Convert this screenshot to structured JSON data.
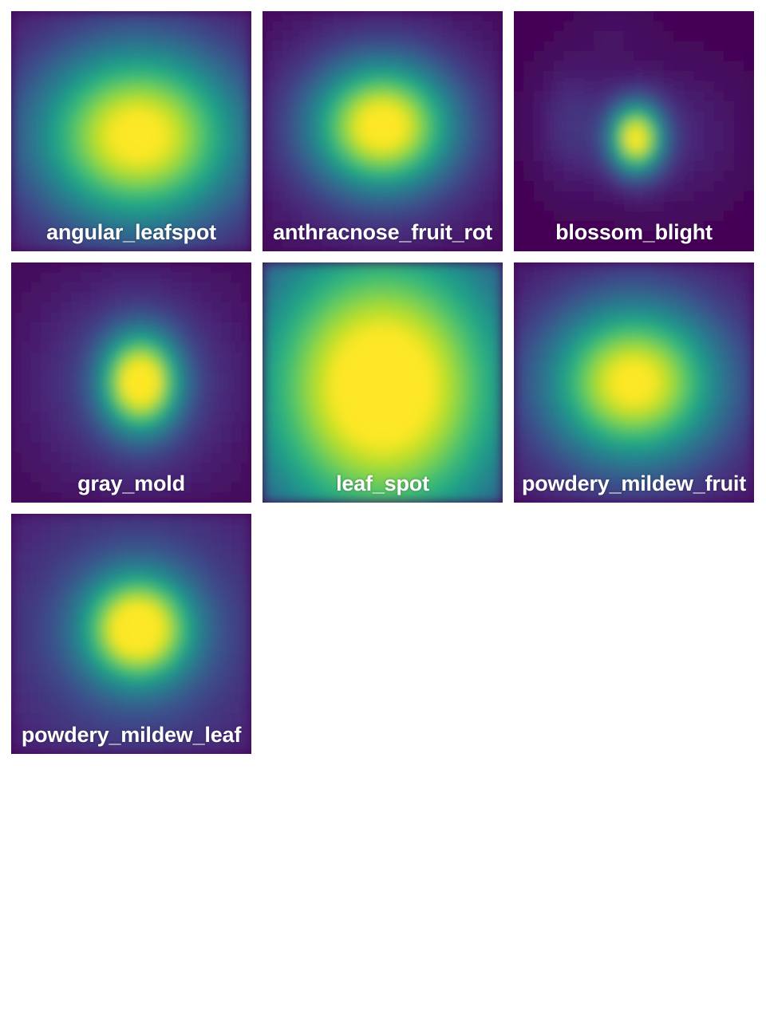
{
  "chart_data": {
    "type": "heatmap",
    "title": "",
    "colormap": "viridis",
    "colormap_stops": [
      "#440154",
      "#482878",
      "#3e4989",
      "#31688e",
      "#26828e",
      "#1f9e89",
      "#35b779",
      "#6ece58",
      "#b5de2b",
      "#fde725"
    ],
    "panels": [
      {
        "label": "angular_leafspot",
        "blobs": [
          {
            "cx": 0.53,
            "cy": 0.52,
            "sx": 0.3,
            "sy": 0.26,
            "amp": 1.0
          }
        ],
        "floor": 0.05
      },
      {
        "label": "anthracnose_fruit_rot",
        "blobs": [
          {
            "cx": 0.5,
            "cy": 0.48,
            "sx": 0.2,
            "sy": 0.18,
            "amp": 0.92
          },
          {
            "cx": 0.5,
            "cy": 0.5,
            "sx": 0.42,
            "sy": 0.38,
            "amp": 0.16
          }
        ],
        "floor": 0.0
      },
      {
        "label": "blossom_blight",
        "blobs": [
          {
            "cx": 0.51,
            "cy": 0.53,
            "sx": 0.075,
            "sy": 0.1,
            "amp": 0.95
          },
          {
            "cx": 0.24,
            "cy": 0.47,
            "sx": 0.11,
            "sy": 0.18,
            "amp": 0.13
          },
          {
            "cx": 0.63,
            "cy": 0.52,
            "sx": 0.22,
            "sy": 0.2,
            "amp": 0.12
          },
          {
            "cx": 0.42,
            "cy": 0.08,
            "sx": 0.1,
            "sy": 0.1,
            "amp": 0.04
          }
        ],
        "floor": 0.0
      },
      {
        "label": "gray_mold",
        "blobs": [
          {
            "cx": 0.54,
            "cy": 0.5,
            "sx": 0.11,
            "sy": 0.14,
            "amp": 0.95
          },
          {
            "cx": 0.52,
            "cy": 0.5,
            "sx": 0.34,
            "sy": 0.34,
            "amp": 0.2
          }
        ],
        "floor": 0.0
      },
      {
        "label": "leaf_spot",
        "blobs": [
          {
            "cx": 0.5,
            "cy": 0.52,
            "sx": 0.38,
            "sy": 0.44,
            "amp": 1.05
          }
        ],
        "floor": 0.08
      },
      {
        "label": "powdery_mildew_fruit",
        "blobs": [
          {
            "cx": 0.5,
            "cy": 0.5,
            "sx": 0.24,
            "sy": 0.22,
            "amp": 0.86
          },
          {
            "cx": 0.5,
            "cy": 0.52,
            "sx": 0.45,
            "sy": 0.4,
            "amp": 0.16
          }
        ],
        "floor": 0.02
      },
      {
        "label": "powdery_mildew_leaf",
        "blobs": [
          {
            "cx": 0.53,
            "cy": 0.48,
            "sx": 0.15,
            "sy": 0.15,
            "amp": 0.9
          },
          {
            "cx": 0.52,
            "cy": 0.5,
            "sx": 0.4,
            "sy": 0.4,
            "amp": 0.25
          }
        ],
        "floor": 0.03
      }
    ]
  }
}
